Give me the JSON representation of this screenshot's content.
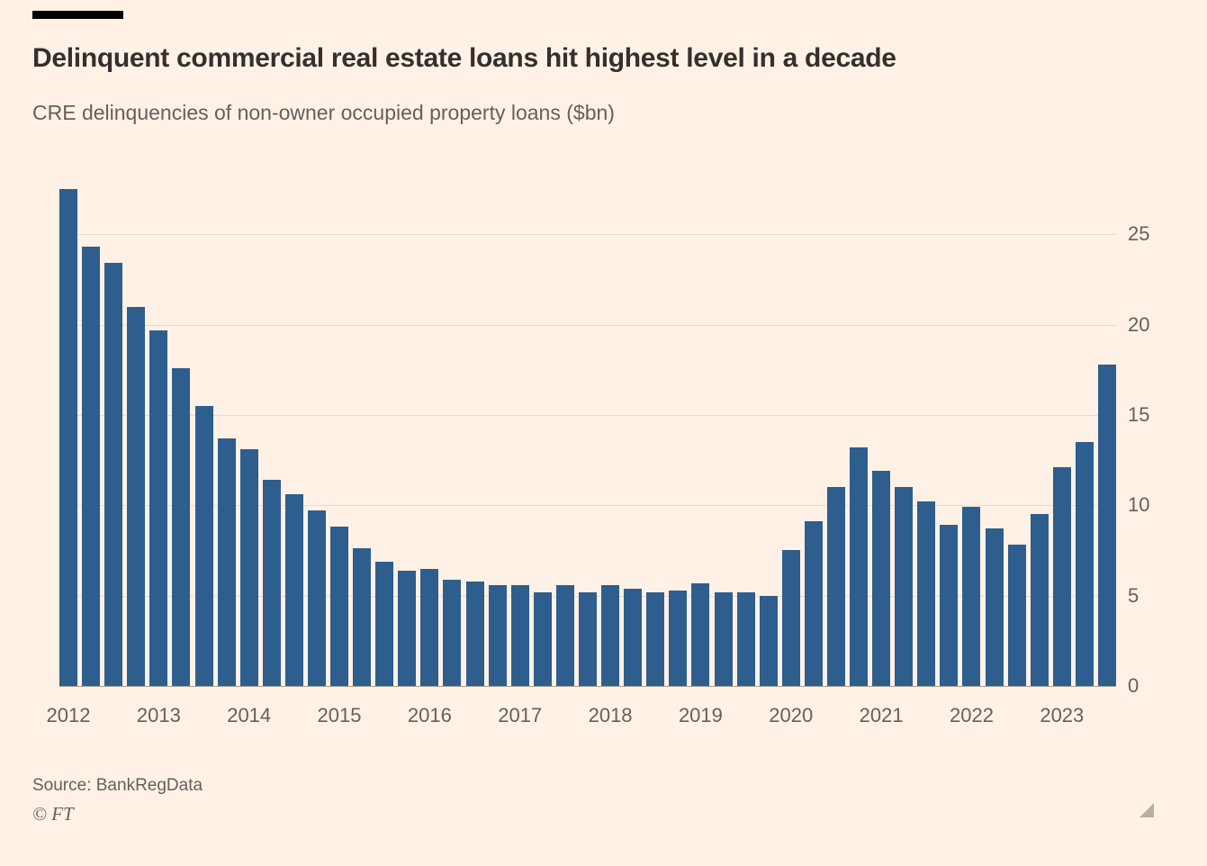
{
  "header": {
    "title": "Delinquent commercial real estate loans hit highest level in a decade",
    "subtitle": "CRE delinquencies of non-owner occupied property loans ($bn)"
  },
  "chart_data": {
    "type": "bar",
    "title": "Delinquent commercial real estate loans hit highest level in a decade",
    "subtitle": "CRE delinquencies of non-owner occupied property loans ($bn)",
    "unit": "$bn",
    "x": [
      "2012 Q1",
      "2012 Q2",
      "2012 Q3",
      "2012 Q4",
      "2013 Q1",
      "2013 Q2",
      "2013 Q3",
      "2013 Q4",
      "2014 Q1",
      "2014 Q2",
      "2014 Q3",
      "2014 Q4",
      "2015 Q1",
      "2015 Q2",
      "2015 Q3",
      "2015 Q4",
      "2016 Q1",
      "2016 Q2",
      "2016 Q3",
      "2016 Q4",
      "2017 Q1",
      "2017 Q2",
      "2017 Q3",
      "2017 Q4",
      "2018 Q1",
      "2018 Q2",
      "2018 Q3",
      "2018 Q4",
      "2019 Q1",
      "2019 Q2",
      "2019 Q3",
      "2019 Q4",
      "2020 Q1",
      "2020 Q2",
      "2020 Q3",
      "2020 Q4",
      "2021 Q1",
      "2021 Q2",
      "2021 Q3",
      "2021 Q4",
      "2022 Q1",
      "2022 Q2",
      "2022 Q3",
      "2022 Q4",
      "2023 Q1",
      "2023 Q2",
      "2023 Q3"
    ],
    "values": [
      27.5,
      24.3,
      23.4,
      21.0,
      19.7,
      17.6,
      15.5,
      13.7,
      13.1,
      11.4,
      10.6,
      9.7,
      8.8,
      7.6,
      6.9,
      6.4,
      6.5,
      5.9,
      5.8,
      5.6,
      5.6,
      5.2,
      5.6,
      5.2,
      5.6,
      5.4,
      5.2,
      5.3,
      5.7,
      5.2,
      5.2,
      5.0,
      7.5,
      9.1,
      11.0,
      13.2,
      11.9,
      11.0,
      10.2,
      8.9,
      9.9,
      8.7,
      7.8,
      9.5,
      12.1,
      13.5,
      17.8
    ],
    "categories": [
      "2012",
      "2013",
      "2014",
      "2015",
      "2016",
      "2017",
      "2018",
      "2019",
      "2020",
      "2021",
      "2022",
      "2023"
    ],
    "bars_per_year": 4,
    "yticks": [
      0,
      5,
      10,
      15,
      20,
      25
    ],
    "ylim": [
      0,
      28.5
    ],
    "grid": "horizontal",
    "y_axis_side": "right",
    "legend": "none",
    "bar_color": "#2e5e8e"
  },
  "footer": {
    "source": "Source: BankRegData",
    "ft_mark": "© FT"
  },
  "colors": {
    "background": "#fff1e5",
    "title_text": "#33302e",
    "secondary_text": "#66605c",
    "gridline": "#e9dcd0",
    "zero_line": "#a99e93",
    "bar": "#2e5e8e",
    "top_rule": "#000000",
    "resize_handle": "#b9aea4"
  },
  "icons": {
    "resize_handle": "corner-resize-triangle"
  }
}
